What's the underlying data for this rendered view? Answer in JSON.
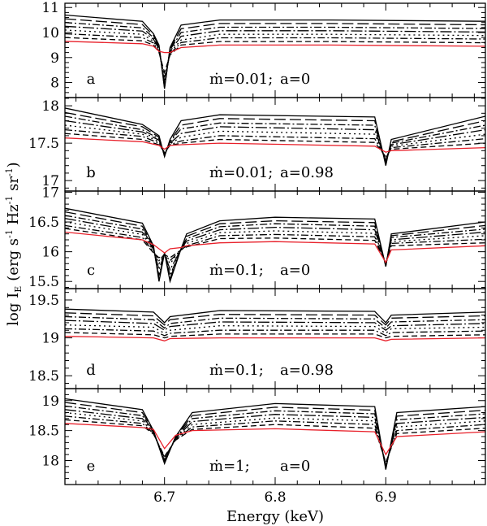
{
  "chart_data": {
    "type": "line",
    "xlabel": "Energy (keV)",
    "ylabel": {
      "main": "log I",
      "sub": "E",
      "units": "(erg s",
      "u1": "-1",
      "hz": " Hz",
      "u2": "-1",
      "sr": " sr",
      "u3": "-1",
      "close": ")"
    },
    "xlim": [
      6.61,
      6.99
    ],
    "xticks": [
      6.7,
      6.8,
      6.9
    ],
    "grid": false,
    "series_styles": [
      "solid",
      "long-dash",
      "dash-dot",
      "long-dash-dot",
      "dot",
      "dash-dot",
      "dash",
      "red-solid"
    ],
    "colors": {
      "black": "#000000",
      "red": "#e8202a"
    },
    "panels": [
      {
        "label": "a",
        "mdot": "ṁ=0.01;",
        "spin": "a=0",
        "ylim": [
          7.4,
          11.17
        ],
        "yticks": [
          8,
          9,
          10,
          11
        ],
        "yminor": 0.2,
        "x": [
          6.61,
          6.68,
          6.69,
          6.695,
          6.7,
          6.705,
          6.715,
          6.75,
          6.85,
          6.99
        ],
        "series": [
          [
            10.7,
            10.45,
            9.95,
            9.5,
            7.75,
            9.4,
            10.3,
            10.5,
            10.5,
            10.45
          ],
          [
            10.55,
            10.32,
            9.88,
            9.45,
            7.8,
            9.35,
            10.15,
            10.36,
            10.36,
            10.31
          ],
          [
            10.4,
            10.19,
            9.8,
            9.4,
            7.9,
            9.3,
            10.0,
            10.21,
            10.21,
            10.16
          ],
          [
            10.25,
            10.06,
            9.73,
            9.35,
            8.0,
            9.25,
            9.85,
            10.07,
            10.07,
            10.02
          ],
          [
            10.1,
            9.93,
            9.65,
            9.3,
            8.1,
            9.2,
            9.7,
            9.93,
            9.93,
            9.88
          ],
          [
            9.95,
            9.8,
            9.58,
            9.25,
            8.2,
            9.15,
            9.6,
            9.79,
            9.79,
            9.74
          ],
          [
            9.8,
            9.67,
            9.5,
            9.2,
            8.4,
            9.1,
            9.5,
            9.64,
            9.64,
            9.59
          ],
          [
            9.65,
            9.55,
            9.45,
            9.25,
            9.2,
            9.2,
            9.4,
            9.5,
            9.5,
            9.45
          ]
        ]
      },
      {
        "label": "b",
        "mdot": "ṁ=0.01;",
        "spin": "a=0.98",
        "ylim": [
          16.86,
          18.11
        ],
        "yticks": [
          17,
          17.5,
          18
        ],
        "yminor": 0.1,
        "x": [
          6.61,
          6.68,
          6.695,
          6.7,
          6.705,
          6.715,
          6.75,
          6.89,
          6.9,
          6.905,
          6.99
        ],
        "series": [
          [
            17.97,
            17.75,
            17.6,
            17.32,
            17.55,
            17.8,
            17.88,
            17.85,
            17.2,
            17.55,
            17.86
          ],
          [
            17.91,
            17.72,
            17.58,
            17.33,
            17.53,
            17.74,
            17.83,
            17.8,
            17.22,
            17.52,
            17.8
          ],
          [
            17.86,
            17.68,
            17.56,
            17.34,
            17.52,
            17.69,
            17.77,
            17.74,
            17.24,
            17.5,
            17.74
          ],
          [
            17.8,
            17.65,
            17.54,
            17.35,
            17.5,
            17.63,
            17.72,
            17.68,
            17.26,
            17.48,
            17.68
          ],
          [
            17.74,
            17.62,
            17.52,
            17.36,
            17.49,
            17.58,
            17.66,
            17.62,
            17.28,
            17.46,
            17.62
          ],
          [
            17.68,
            17.59,
            17.5,
            17.37,
            17.48,
            17.53,
            17.6,
            17.56,
            17.3,
            17.44,
            17.56
          ],
          [
            17.63,
            17.55,
            17.48,
            17.38,
            17.47,
            17.5,
            17.55,
            17.51,
            17.32,
            17.42,
            17.5
          ],
          [
            17.57,
            17.52,
            17.47,
            17.42,
            17.47,
            17.48,
            17.5,
            17.46,
            17.38,
            17.4,
            17.44
          ]
        ]
      },
      {
        "label": "c",
        "mdot": "ṁ=0.1;",
        "spin": "a=0",
        "ylim": [
          15.38,
          17.02
        ],
        "yticks": [
          15.5,
          16,
          16.5,
          17
        ],
        "yminor": 0.1,
        "x": [
          6.61,
          6.68,
          6.69,
          6.695,
          6.7,
          6.705,
          6.715,
          6.72,
          6.75,
          6.8,
          6.89,
          6.9,
          6.905,
          6.99
        ],
        "series": [
          [
            16.73,
            16.48,
            16.1,
            15.5,
            15.98,
            15.5,
            16.05,
            16.3,
            16.52,
            16.58,
            16.55,
            15.75,
            16.3,
            16.5
          ],
          [
            16.67,
            16.43,
            16.08,
            15.55,
            15.98,
            15.55,
            16.05,
            16.26,
            16.47,
            16.52,
            16.49,
            15.76,
            16.27,
            16.44
          ],
          [
            16.61,
            16.38,
            16.06,
            15.6,
            15.97,
            15.6,
            16.05,
            16.22,
            16.42,
            16.47,
            16.43,
            15.77,
            16.24,
            16.38
          ],
          [
            16.56,
            16.33,
            16.04,
            15.7,
            15.97,
            15.7,
            16.04,
            16.18,
            16.37,
            16.41,
            16.37,
            15.78,
            16.2,
            16.33
          ],
          [
            16.5,
            16.29,
            16.02,
            15.8,
            15.96,
            15.8,
            16.04,
            16.14,
            16.32,
            16.35,
            16.31,
            15.79,
            16.17,
            16.27
          ],
          [
            16.44,
            16.24,
            16.0,
            15.85,
            15.96,
            15.85,
            16.03,
            16.1,
            16.27,
            16.29,
            16.25,
            15.8,
            16.14,
            16.21
          ],
          [
            16.39,
            16.2,
            15.98,
            15.9,
            15.95,
            15.9,
            16.03,
            16.08,
            16.22,
            16.23,
            16.19,
            15.81,
            16.1,
            16.15
          ],
          [
            16.33,
            16.2,
            16.12,
            16.05,
            15.98,
            16.05,
            16.07,
            16.1,
            16.15,
            16.17,
            16.13,
            15.82,
            16.03,
            16.1
          ]
        ]
      },
      {
        "label": "d",
        "mdot": "ṁ=0.1;",
        "spin": "a=0.98",
        "ylim": [
          18.33,
          19.65
        ],
        "yticks": [
          18.5,
          19,
          19.5
        ],
        "yminor": 0.1,
        "x": [
          6.61,
          6.69,
          6.7,
          6.705,
          6.75,
          6.89,
          6.9,
          6.905,
          6.99
        ],
        "series": [
          [
            19.38,
            19.34,
            19.2,
            19.28,
            19.36,
            19.35,
            19.2,
            19.3,
            19.34
          ],
          [
            19.33,
            19.29,
            19.17,
            19.24,
            19.31,
            19.3,
            19.17,
            19.26,
            19.29
          ],
          [
            19.28,
            19.24,
            19.13,
            19.19,
            19.26,
            19.25,
            19.13,
            19.21,
            19.24
          ],
          [
            19.23,
            19.19,
            19.1,
            19.15,
            19.21,
            19.2,
            19.1,
            19.16,
            19.19
          ],
          [
            19.17,
            19.14,
            19.06,
            19.1,
            19.16,
            19.15,
            19.06,
            19.12,
            19.14
          ],
          [
            19.12,
            19.09,
            19.03,
            19.06,
            19.1,
            19.1,
            19.03,
            19.07,
            19.09
          ],
          [
            19.07,
            19.04,
            19.0,
            19.02,
            19.05,
            19.05,
            19.0,
            19.02,
            19.04
          ],
          [
            19.02,
            19.0,
            18.96,
            18.99,
            19.0,
            19.0,
            18.96,
            18.98,
            19.0
          ]
        ]
      },
      {
        "label": "e",
        "mdot": "ṁ=1;",
        "spin": "a=0",
        "ylim": [
          17.6,
          19.2
        ],
        "yticks": [
          18,
          18.5,
          19
        ],
        "yminor": 0.1,
        "x": [
          6.61,
          6.68,
          6.69,
          6.7,
          6.71,
          6.725,
          6.8,
          6.89,
          6.9,
          6.91,
          6.99
        ],
        "series": [
          [
            19.03,
            18.85,
            18.5,
            17.95,
            18.4,
            18.8,
            18.95,
            18.9,
            17.85,
            18.8,
            18.9
          ],
          [
            18.97,
            18.8,
            18.49,
            17.97,
            18.39,
            18.75,
            18.89,
            18.84,
            17.87,
            18.74,
            18.84
          ],
          [
            18.91,
            18.75,
            18.48,
            17.99,
            18.38,
            18.7,
            18.83,
            18.78,
            17.89,
            18.68,
            18.78
          ],
          [
            18.85,
            18.7,
            18.47,
            18.01,
            18.37,
            18.65,
            18.77,
            18.72,
            17.91,
            18.62,
            18.72
          ],
          [
            18.8,
            18.66,
            18.46,
            18.03,
            18.36,
            18.6,
            18.71,
            18.66,
            17.93,
            18.56,
            18.66
          ],
          [
            18.74,
            18.62,
            18.45,
            18.05,
            18.35,
            18.56,
            18.66,
            18.6,
            17.95,
            18.5,
            18.6
          ],
          [
            18.68,
            18.58,
            18.44,
            18.07,
            18.34,
            18.52,
            18.6,
            18.54,
            17.97,
            18.45,
            18.54
          ],
          [
            18.62,
            18.55,
            18.52,
            18.2,
            18.42,
            18.5,
            18.53,
            18.48,
            18.1,
            18.4,
            18.48
          ]
        ]
      }
    ]
  }
}
